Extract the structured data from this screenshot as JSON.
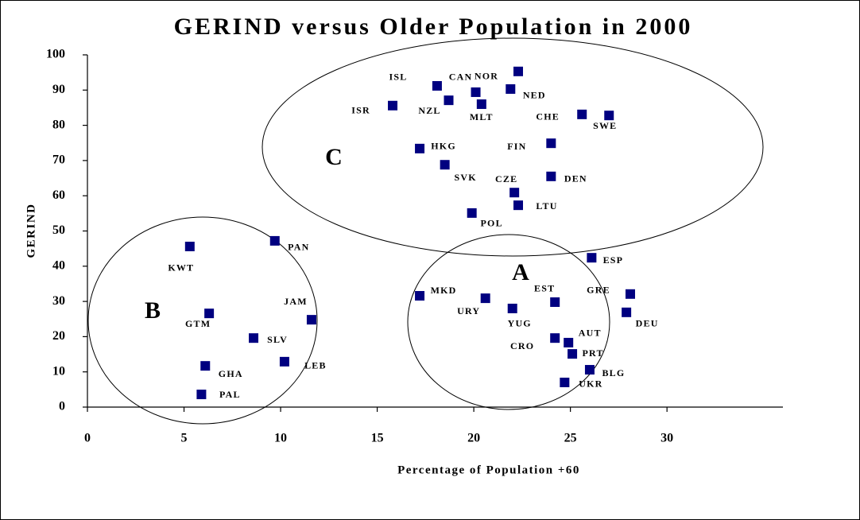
{
  "chart_data": {
    "type": "scatter",
    "title": "GERIND versus Older Population in 2000",
    "x_label": "Percentage of Population +60",
    "y_label": "GERIND",
    "color": "#000080",
    "xlim": [
      0,
      36
    ],
    "xticks": [
      0,
      5,
      10,
      15,
      20,
      25,
      30
    ],
    "ylim": [
      0,
      100
    ],
    "yticks": [
      0,
      10,
      20,
      30,
      40,
      50,
      60,
      70,
      80,
      90,
      100
    ],
    "annotations": [
      "A",
      "B",
      "C"
    ],
    "labels": [
      "ISL",
      "CAN",
      "NOR",
      "NZL",
      "MLT",
      "NED",
      "ISR",
      "CHE",
      "SWE",
      "HKG",
      "FIN",
      "SVK",
      "CZE",
      "DEN",
      "LTU",
      "POL",
      "KWT",
      "PAN",
      "GTM",
      "JAM",
      "SLV",
      "LEB",
      "GHA",
      "PAL",
      "ESP",
      "MKD",
      "URY",
      "EST",
      "YUG",
      "GRE",
      "DEU",
      "CRO",
      "AUT",
      "PRT",
      "BLG",
      "UKR"
    ],
    "x": [
      18.1,
      20.1,
      22.3,
      18.7,
      20.4,
      21.9,
      15.8,
      25.6,
      27.0,
      17.2,
      24.0,
      18.5,
      22.1,
      24.0,
      22.3,
      19.9,
      5.3,
      9.7,
      6.3,
      11.6,
      8.6,
      10.2,
      6.1,
      5.9,
      26.1,
      17.2,
      20.6,
      24.2,
      22.0,
      28.1,
      27.9,
      24.2,
      24.9,
      25.1,
      26.0,
      24.7
    ],
    "values": [
      91.2,
      89.4,
      95.3,
      87.1,
      86.0,
      90.3,
      85.6,
      83.1,
      82.8,
      73.4,
      74.9,
      68.8,
      60.9,
      65.5,
      57.3,
      55.1,
      45.6,
      47.2,
      26.6,
      24.8,
      19.6,
      12.9,
      11.7,
      3.6,
      42.4,
      31.6,
      30.9,
      29.8,
      28.0,
      32.1,
      26.9,
      19.6,
      18.3,
      15.1,
      10.6,
      7.0
    ]
  }
}
